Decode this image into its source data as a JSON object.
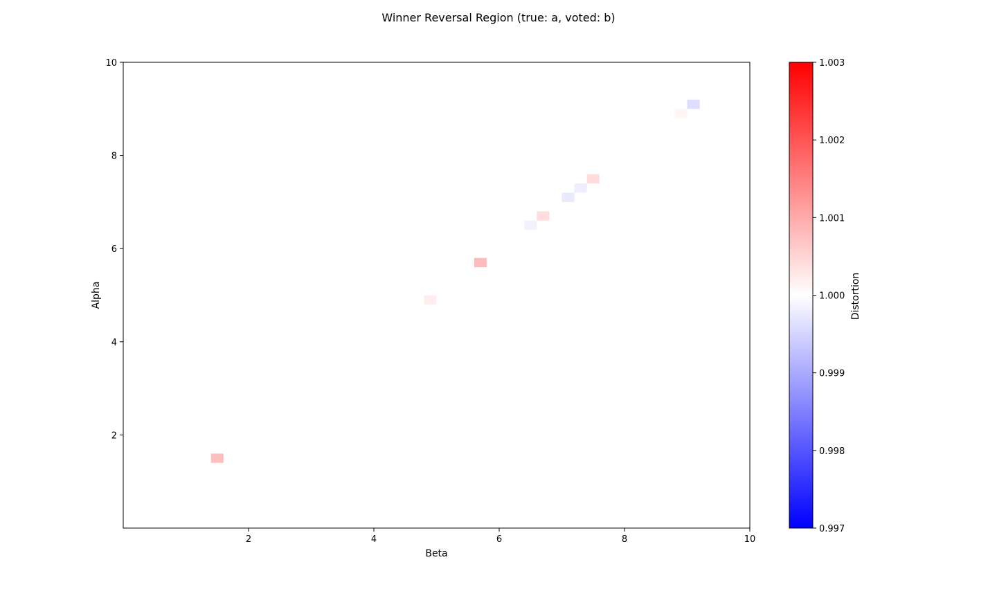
{
  "chart_data": {
    "type": "heatmap",
    "title": "Winner Reversal Region (true: a, voted: b)",
    "xlabel": "Beta",
    "ylabel": "Alpha",
    "xlim": [
      0,
      10
    ],
    "ylim": [
      0,
      10
    ],
    "xticks": [
      "2",
      "4",
      "6",
      "8",
      "10"
    ],
    "yticks": [
      "2",
      "4",
      "6",
      "8",
      "10"
    ],
    "cell_size": 0.2,
    "background_value": 1.0,
    "cells": [
      {
        "x": 1.5,
        "y": 1.5,
        "value": 1.00075
      },
      {
        "x": 4.9,
        "y": 4.9,
        "value": 1.0002
      },
      {
        "x": 5.7,
        "y": 5.7,
        "value": 1.0008
      },
      {
        "x": 6.5,
        "y": 6.5,
        "value": 0.99985
      },
      {
        "x": 6.7,
        "y": 6.7,
        "value": 1.0004
      },
      {
        "x": 7.1,
        "y": 7.1,
        "value": 0.99975
      },
      {
        "x": 7.3,
        "y": 7.3,
        "value": 0.9998
      },
      {
        "x": 7.5,
        "y": 7.5,
        "value": 1.0004
      },
      {
        "x": 8.9,
        "y": 8.9,
        "value": 1.0001
      },
      {
        "x": 9.1,
        "y": 9.1,
        "value": 0.9996
      }
    ],
    "colorbar": {
      "label": "Distortion",
      "colormap": "bwr",
      "range": [
        0.997,
        1.003
      ],
      "ticks": [
        "0.997",
        "0.998",
        "0.999",
        "1.000",
        "1.001",
        "1.002",
        "1.003"
      ]
    }
  }
}
